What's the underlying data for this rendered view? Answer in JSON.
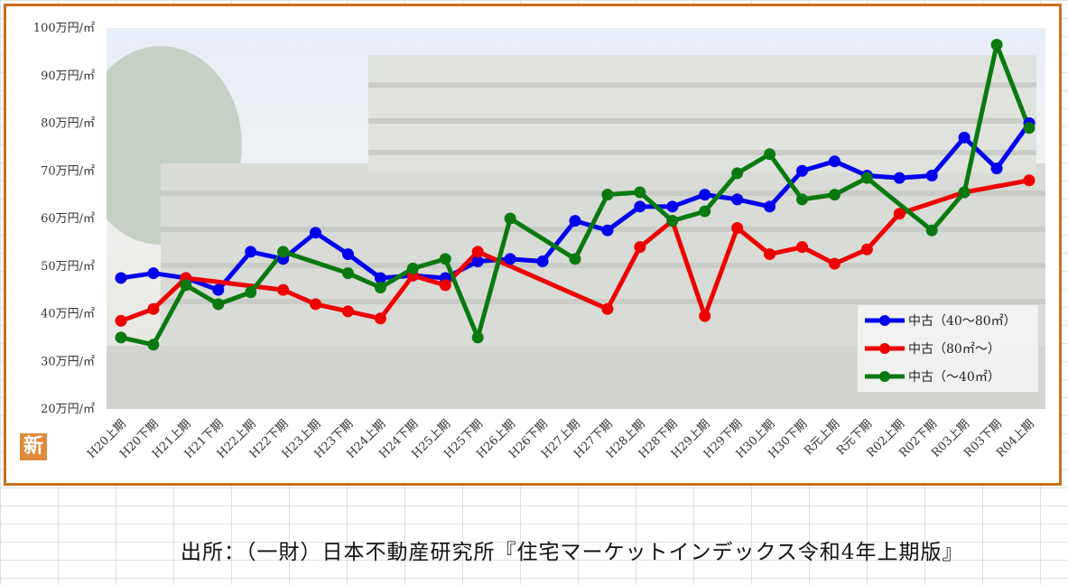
{
  "source_note": "出所：（一財）日本不動産研究所『住宅マーケットインデックス令和4年上期版』",
  "badge_text": "新",
  "colors": {
    "blue": "#0000ee",
    "red": "#ee0000",
    "green": "#0a7a10",
    "frame": "#c8701e"
  },
  "chart_data": {
    "type": "line",
    "title": "",
    "xlabel": "",
    "ylabel": "",
    "ylim": [
      20,
      100
    ],
    "y_ticks": [
      {
        "value": 20,
        "label": "20万円/㎡"
      },
      {
        "value": 30,
        "label": "30万円/㎡"
      },
      {
        "value": 40,
        "label": "40万円/㎡"
      },
      {
        "value": 50,
        "label": "50万円/㎡"
      },
      {
        "value": 60,
        "label": "60万円/㎡"
      },
      {
        "value": 70,
        "label": "70万円/㎡"
      },
      {
        "value": 80,
        "label": "80万円/㎡"
      },
      {
        "value": 90,
        "label": "90万円/㎡"
      },
      {
        "value": 100,
        "label": "100万円/㎡"
      }
    ],
    "categories": [
      "H20上期",
      "H20下期",
      "H21上期",
      "H21下期",
      "H22上期",
      "H22下期",
      "H23上期",
      "H23下期",
      "H24上期",
      "H24下期",
      "H25上期",
      "H25下期",
      "H26上期",
      "H26下期",
      "H27上期",
      "H27下期",
      "H28上期",
      "H28下期",
      "H29上期",
      "H29下期",
      "H30上期",
      "H30下期",
      "R元上期",
      "R元下期",
      "R02上期",
      "R02下期",
      "R03上期",
      "R03下期",
      "R04上期"
    ],
    "legend_position": "bottom-right",
    "series": [
      {
        "name": "中古（40～80㎡）",
        "color": "#0000ee",
        "values": [
          47.5,
          48.5,
          47.5,
          45,
          53,
          51.5,
          57,
          52.5,
          47.5,
          48,
          47.5,
          51,
          51.5,
          51,
          59.5,
          57.5,
          62.5,
          62.5,
          65,
          64,
          62.5,
          70,
          72,
          69,
          68.5,
          69,
          77,
          70.5,
          80
        ]
      },
      {
        "name": "中古（80㎡～）",
        "color": "#ee0000",
        "values": [
          38.5,
          41,
          47.5,
          null,
          null,
          45,
          42,
          40.5,
          39,
          48,
          46,
          53,
          null,
          null,
          null,
          41,
          54,
          59.5,
          39.5,
          58,
          52.5,
          54,
          50.5,
          53.5,
          61,
          null,
          65.5,
          null,
          68
        ]
      },
      {
        "name": "中古（～40㎡）",
        "color": "#0a7a10",
        "values": [
          35,
          33.5,
          46,
          42,
          44.5,
          53,
          null,
          48.5,
          45.5,
          49.5,
          51.5,
          35,
          60,
          null,
          51.5,
          65,
          65.5,
          59.5,
          61.5,
          69.5,
          73.5,
          64,
          65,
          68.5,
          null,
          57.5,
          65.5,
          96.5,
          79
        ]
      }
    ]
  }
}
